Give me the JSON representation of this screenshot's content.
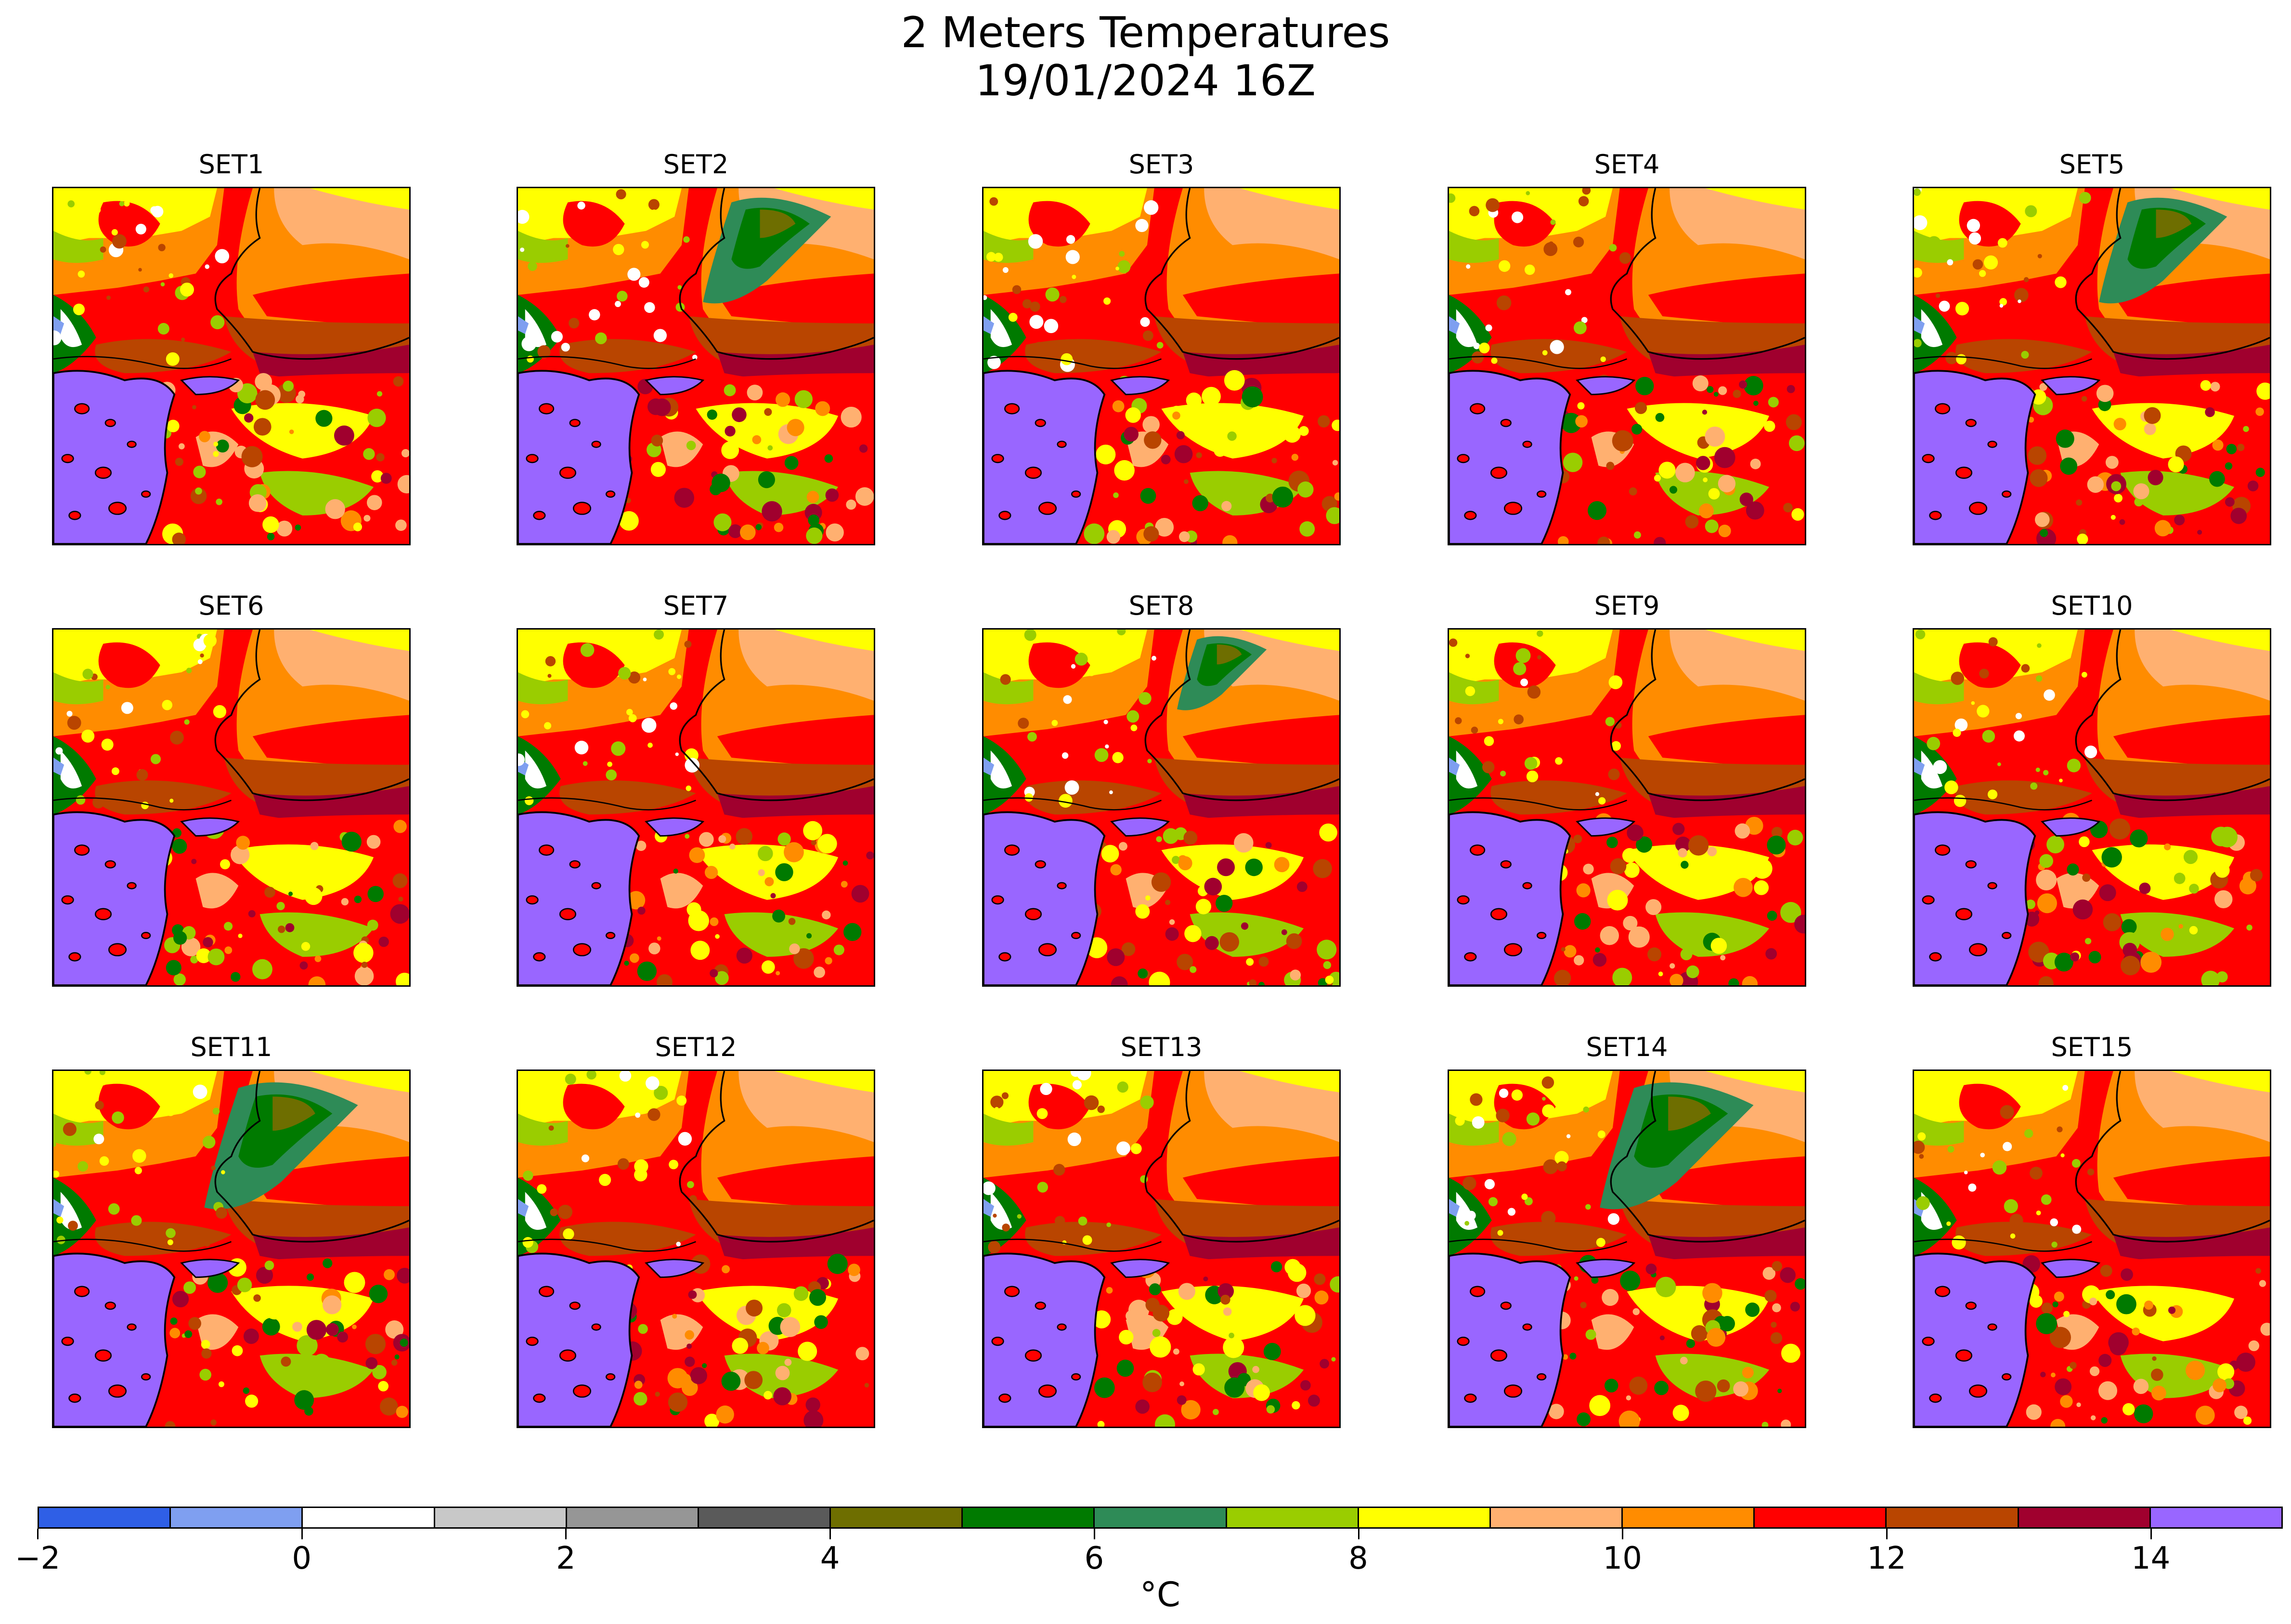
{
  "title": {
    "line1": "2 Meters Temperatures",
    "line2": "19/01/2024 16Z"
  },
  "panels": [
    {
      "label": "SET1",
      "cold": 0
    },
    {
      "label": "SET2",
      "cold": 2
    },
    {
      "label": "SET3",
      "cold": 0
    },
    {
      "label": "SET4",
      "cold": 0
    },
    {
      "label": "SET5",
      "cold": 2
    },
    {
      "label": "SET6",
      "cold": 0
    },
    {
      "label": "SET7",
      "cold": 0
    },
    {
      "label": "SET8",
      "cold": 1
    },
    {
      "label": "SET9",
      "cold": 0
    },
    {
      "label": "SET10",
      "cold": 0
    },
    {
      "label": "SET11",
      "cold": 3
    },
    {
      "label": "SET12",
      "cold": 0
    },
    {
      "label": "SET13",
      "cold": 0
    },
    {
      "label": "SET14",
      "cold": 3
    },
    {
      "label": "SET15",
      "cold": 0
    }
  ],
  "colorbar": {
    "min": -2,
    "max": 15,
    "unit": "°C",
    "colors": [
      "#2f5fe6",
      "#7f9ff0",
      "#ffffff",
      "#c8c8c8",
      "#969696",
      "#5a5a5a",
      "#6e6e00",
      "#007a00",
      "#2e8b57",
      "#9acd00",
      "#ffff00",
      "#ffb070",
      "#ff8c00",
      "#ff0000",
      "#b94500",
      "#a0002e",
      "#9966ff"
    ],
    "ticks": [
      {
        "value": -2,
        "label": "−2"
      },
      {
        "value": 0,
        "label": "0"
      },
      {
        "value": 2,
        "label": "2"
      },
      {
        "value": 4,
        "label": "4"
      },
      {
        "value": 6,
        "label": "6"
      },
      {
        "value": 8,
        "label": "8"
      },
      {
        "value": 10,
        "label": "10"
      },
      {
        "value": 12,
        "label": "12"
      },
      {
        "value": 14,
        "label": "14"
      }
    ]
  }
}
